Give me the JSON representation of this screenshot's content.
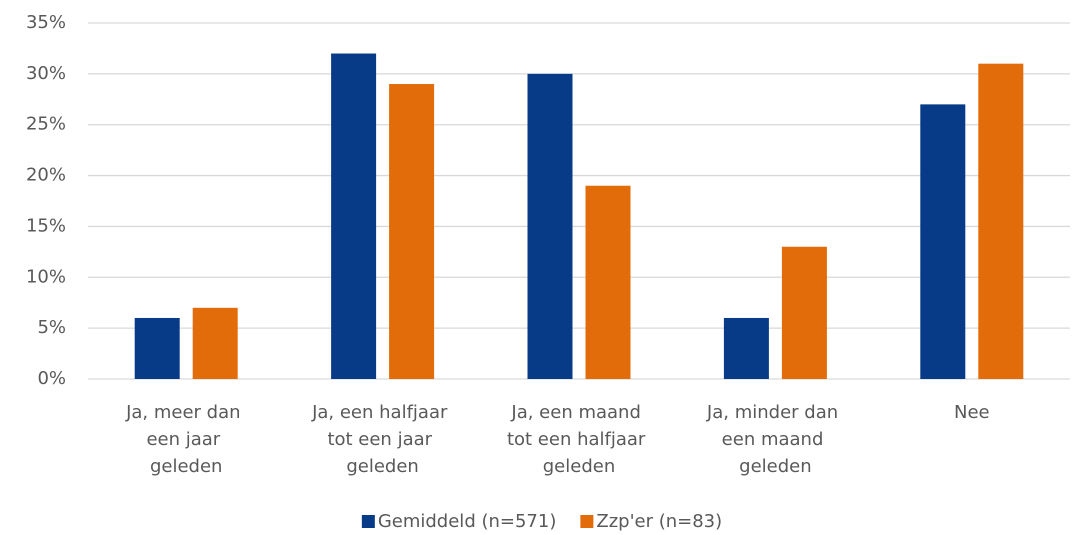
{
  "chart_data": {
    "type": "bar",
    "categories": [
      "Ja, meer dan een jaar geleden",
      "Ja, een halfjaar tot een jaar geleden",
      "Ja, een maand tot een halfjaar geleden",
      "Ja, minder dan een maand geleden",
      "Nee"
    ],
    "series": [
      {
        "name": "Gemiddeld (n=571)",
        "color": "#073b87",
        "values": [
          6,
          32,
          30,
          6,
          27
        ]
      },
      {
        "name": "Zzp'er (n=83)",
        "color": "#e36c0a",
        "values": [
          7,
          29,
          19,
          13,
          31
        ]
      }
    ],
    "ylim": [
      0,
      35
    ],
    "yticks": [
      {
        "value": 0,
        "label": "0%"
      },
      {
        "value": 5,
        "label": "5%"
      },
      {
        "value": 10,
        "label": "10%"
      },
      {
        "value": 15,
        "label": "15%"
      },
      {
        "value": 20,
        "label": "20%"
      },
      {
        "value": 25,
        "label": "25%"
      },
      {
        "value": 30,
        "label": "30%"
      },
      {
        "value": 35,
        "label": "35%"
      }
    ],
    "grid": true,
    "legend": "bottom"
  }
}
